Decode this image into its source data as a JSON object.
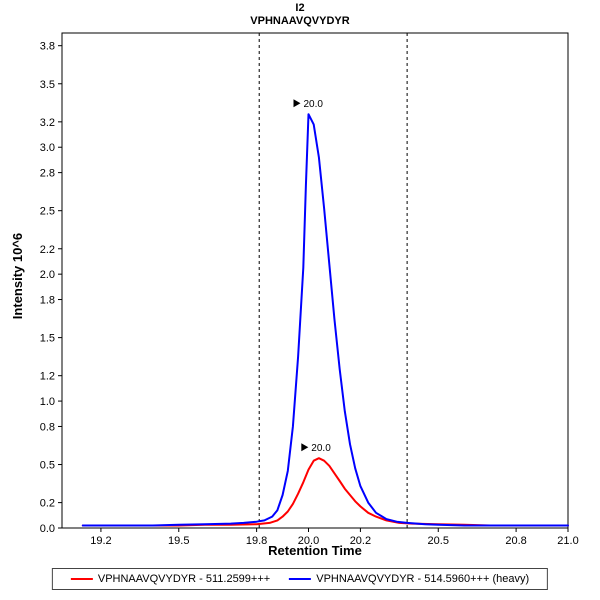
{
  "title": "I2",
  "subtitle": "VPHNAAVQVYDYR",
  "chart_data": {
    "type": "line",
    "title": "I2",
    "subtitle": "VPHNAAVQVYDYR",
    "xlabel": "Retention Time",
    "ylabel": "Intensity 10^6",
    "xlim": [
      19.05,
      21.0
    ],
    "ylim": [
      0,
      3.9
    ],
    "xticks": [
      19.2,
      19.5,
      19.8,
      20.0,
      20.2,
      20.5,
      20.8,
      21.0
    ],
    "yticks": [
      0.0,
      0.2,
      0.5,
      0.8,
      1.0,
      1.2,
      1.5,
      1.8,
      2.0,
      2.2,
      2.5,
      2.8,
      3.0,
      3.2,
      3.5,
      3.8
    ],
    "grid": false,
    "legend_position": "bottom",
    "boundaries": [
      19.81,
      20.38
    ],
    "series": [
      {
        "name": "VPHNAAVQVYDYR - 511.2599+++",
        "color": "#ff0000",
        "peak_label": "20.0",
        "peak_x": 20.03,
        "peak_y": 0.55,
        "points": [
          [
            19.13,
            0.02
          ],
          [
            19.3,
            0.02
          ],
          [
            19.5,
            0.02
          ],
          [
            19.6,
            0.025
          ],
          [
            19.7,
            0.025
          ],
          [
            19.8,
            0.03
          ],
          [
            19.85,
            0.04
          ],
          [
            19.88,
            0.06
          ],
          [
            19.9,
            0.09
          ],
          [
            19.92,
            0.13
          ],
          [
            19.94,
            0.19
          ],
          [
            19.96,
            0.27
          ],
          [
            19.98,
            0.36
          ],
          [
            20.0,
            0.46
          ],
          [
            20.02,
            0.53
          ],
          [
            20.04,
            0.55
          ],
          [
            20.06,
            0.53
          ],
          [
            20.08,
            0.49
          ],
          [
            20.1,
            0.43
          ],
          [
            20.12,
            0.37
          ],
          [
            20.14,
            0.31
          ],
          [
            20.16,
            0.26
          ],
          [
            20.18,
            0.21
          ],
          [
            20.2,
            0.17
          ],
          [
            20.23,
            0.12
          ],
          [
            20.26,
            0.09
          ],
          [
            20.3,
            0.06
          ],
          [
            20.35,
            0.04
          ],
          [
            20.4,
            0.035
          ],
          [
            20.5,
            0.03
          ],
          [
            20.6,
            0.025
          ],
          [
            20.7,
            0.02
          ],
          [
            20.8,
            0.02
          ],
          [
            20.9,
            0.02
          ],
          [
            21.0,
            0.02
          ]
        ]
      },
      {
        "name": "VPHNAAVQVYDYR - 514.5960+++ (heavy)",
        "color": "#0000ff",
        "peak_label": "20.0",
        "peak_x": 20.0,
        "peak_y": 3.26,
        "points": [
          [
            19.13,
            0.02
          ],
          [
            19.2,
            0.02
          ],
          [
            19.3,
            0.02
          ],
          [
            19.4,
            0.02
          ],
          [
            19.5,
            0.025
          ],
          [
            19.6,
            0.03
          ],
          [
            19.7,
            0.035
          ],
          [
            19.75,
            0.04
          ],
          [
            19.8,
            0.05
          ],
          [
            19.83,
            0.06
          ],
          [
            19.86,
            0.09
          ],
          [
            19.88,
            0.14
          ],
          [
            19.9,
            0.26
          ],
          [
            19.92,
            0.45
          ],
          [
            19.94,
            0.8
          ],
          [
            19.96,
            1.35
          ],
          [
            19.98,
            2.05
          ],
          [
            19.99,
            2.7
          ],
          [
            20.0,
            3.26
          ],
          [
            20.02,
            3.18
          ],
          [
            20.04,
            2.92
          ],
          [
            20.06,
            2.52
          ],
          [
            20.08,
            2.08
          ],
          [
            20.1,
            1.64
          ],
          [
            20.12,
            1.25
          ],
          [
            20.14,
            0.92
          ],
          [
            20.16,
            0.66
          ],
          [
            20.18,
            0.47
          ],
          [
            20.2,
            0.33
          ],
          [
            20.23,
            0.2
          ],
          [
            20.26,
            0.12
          ],
          [
            20.3,
            0.07
          ],
          [
            20.34,
            0.05
          ],
          [
            20.38,
            0.04
          ],
          [
            20.45,
            0.03
          ],
          [
            20.5,
            0.025
          ],
          [
            20.6,
            0.02
          ],
          [
            20.7,
            0.02
          ],
          [
            20.8,
            0.02
          ],
          [
            20.9,
            0.02
          ],
          [
            21.0,
            0.02
          ]
        ]
      }
    ]
  },
  "legend": {
    "items": [
      {
        "label": "VPHNAAVQVYDYR - 511.2599+++",
        "color": "#ff0000"
      },
      {
        "label": "VPHNAAVQVYDYR - 514.5960+++ (heavy)",
        "color": "#0000ff"
      }
    ]
  }
}
